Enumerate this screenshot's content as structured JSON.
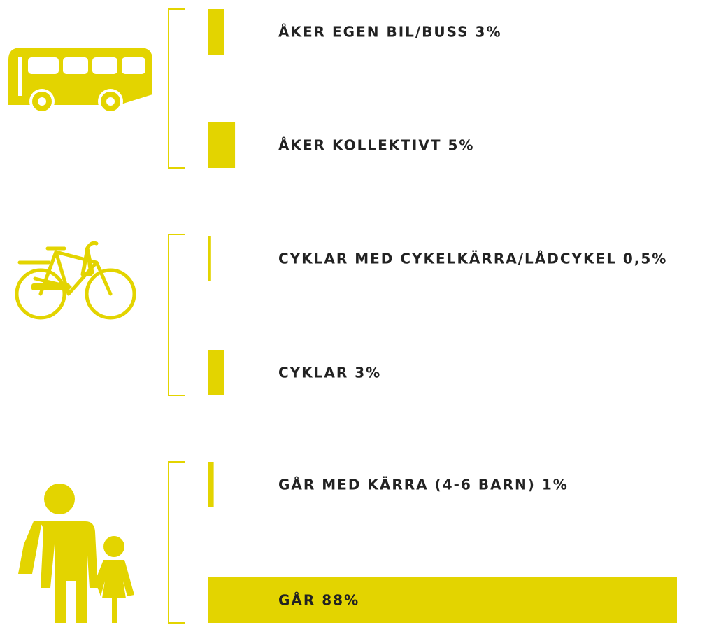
{
  "chart_data": {
    "type": "bar",
    "orientation": "horizontal",
    "color": "#e3d400",
    "categories": [
      "ÅKER EGEN BIL/BUSS",
      "ÅKER KOLLEKTIVT",
      "CYKLAR MED CYKELKÄRRA/LÅDCYKEL",
      "CYKLAR",
      "GÅR MED KÄRRA (4-6 BARN)",
      "GÅR"
    ],
    "values": [
      3,
      5,
      0.5,
      3,
      1,
      88
    ],
    "value_labels": [
      "3%",
      "5%",
      "0,5%",
      "3%",
      "1%",
      "88%"
    ]
  }
}
